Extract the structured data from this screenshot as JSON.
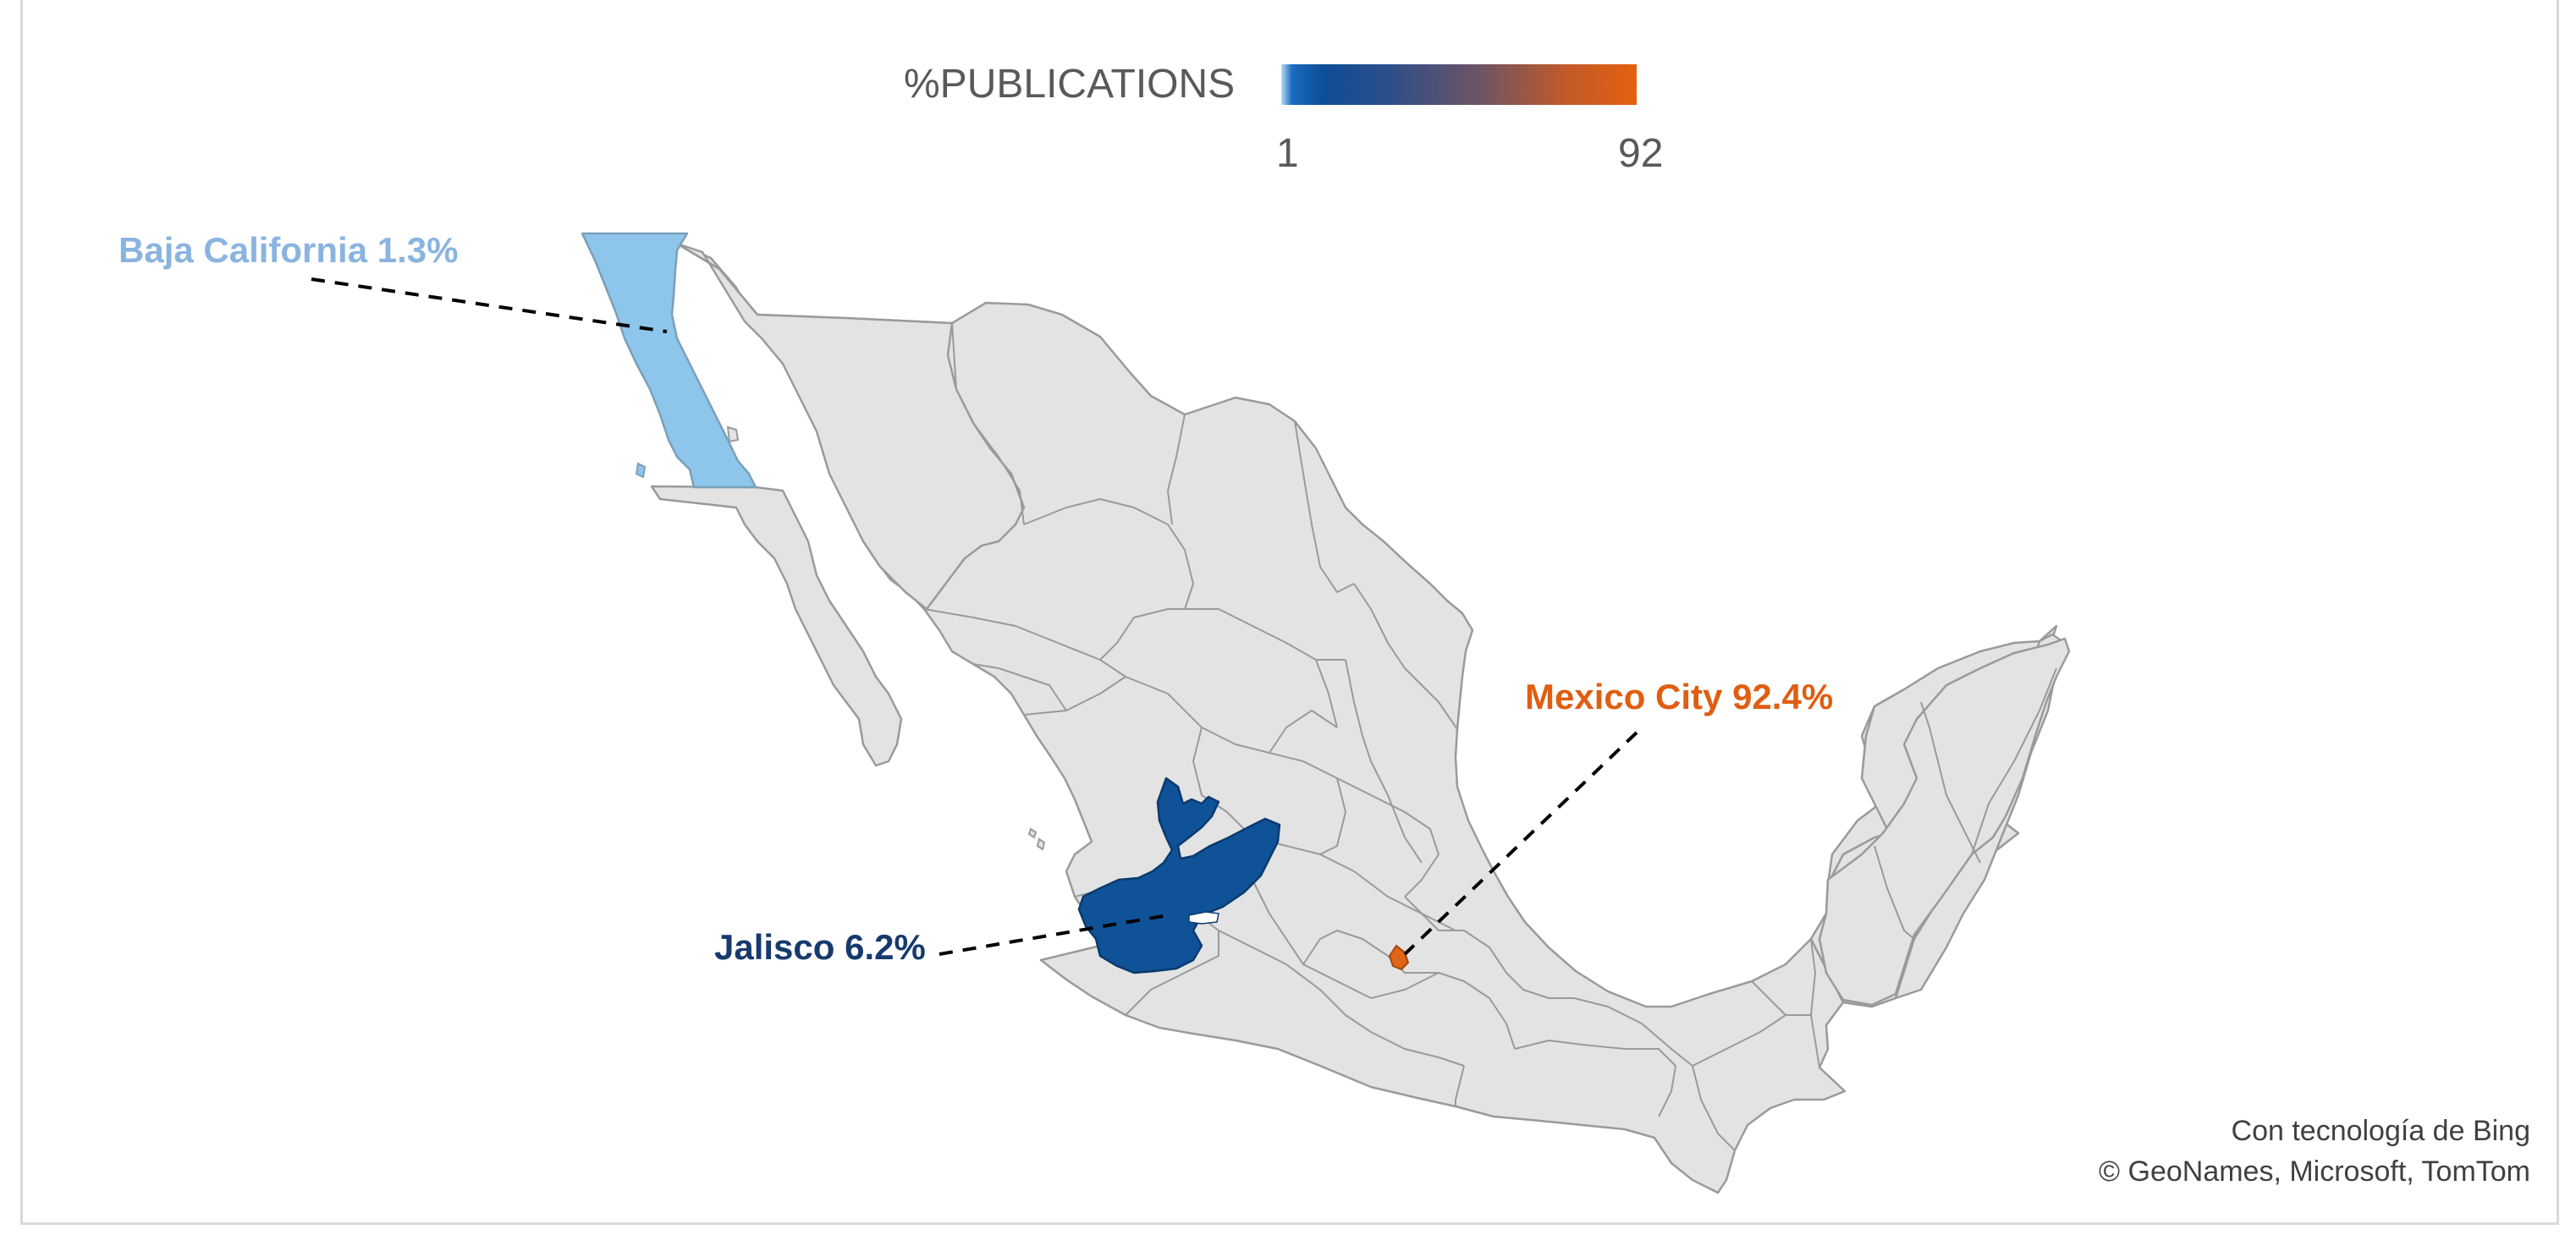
{
  "legend": {
    "title": "%PUBLICATIONS",
    "min_label": "1",
    "max_label": "92",
    "gradient_colors": [
      "#b9dbf3",
      "#0e4d97",
      "#6b5466",
      "#e6600f"
    ]
  },
  "regions": [
    {
      "name": "Baja California",
      "value_pct": 1.3,
      "label": "Baja California 1.3%",
      "fill": "#8ec5ea",
      "label_color": "#8ab4e0"
    },
    {
      "name": "Jalisco",
      "value_pct": 6.2,
      "label": "Jalisco 6.2%",
      "fill": "#0f5298",
      "label_color": "#163a6e"
    },
    {
      "name": "Mexico City",
      "value_pct": 92.4,
      "label": "Mexico City 92.4%",
      "fill": "#e06514",
      "label_color": "#e05e12"
    }
  ],
  "base_fill": "#e3e3e3",
  "border_color": "#9a9a9a",
  "credits": {
    "line1": "Con tecnología de Bing",
    "line2": "© GeoNames, Microsoft, TomTom"
  }
}
